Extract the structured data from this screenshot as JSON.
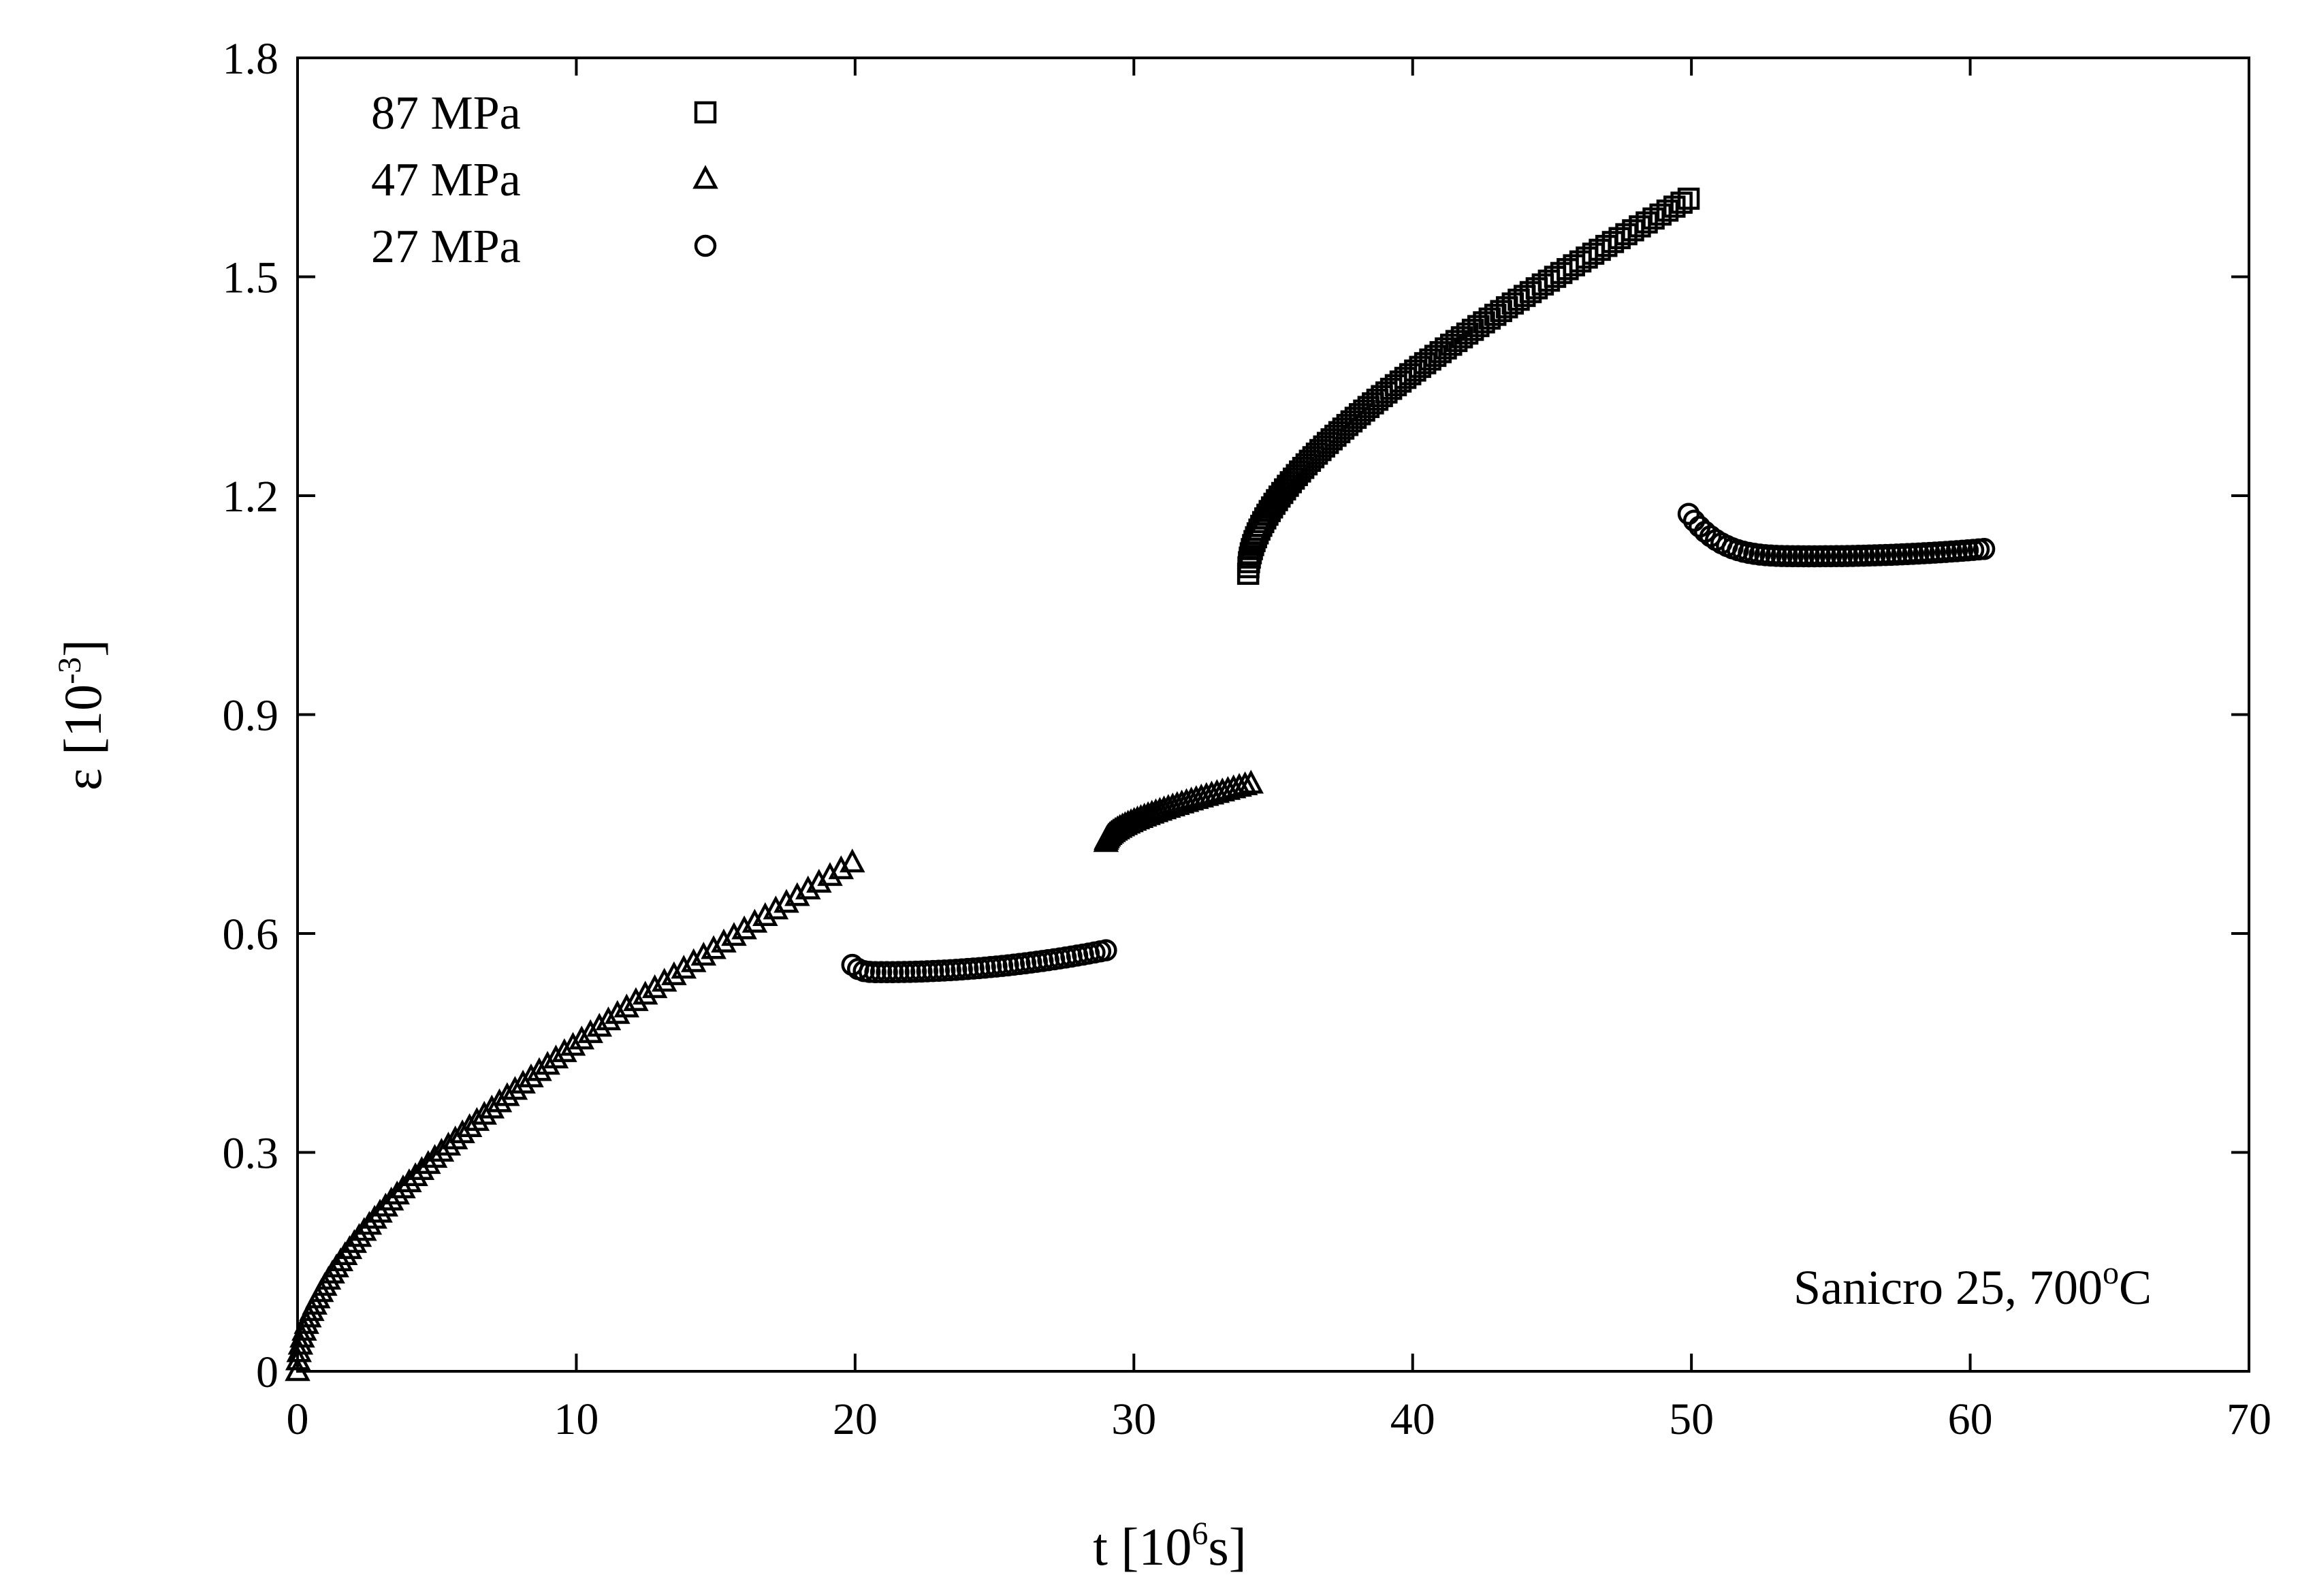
{
  "chart_data": {
    "type": "scatter",
    "xlabel": {
      "base": "t [10",
      "sup": "6",
      "tail": "s]"
    },
    "ylabel": {
      "base": "ε [10",
      "sup": "-3",
      "tail": "]"
    },
    "xlim": [
      0,
      70
    ],
    "ylim": [
      0,
      1.8
    ],
    "xticks": [
      0,
      10,
      20,
      30,
      40,
      50,
      60,
      70
    ],
    "xtick_labels": [
      "0",
      "10",
      "20",
      "30",
      "40",
      "50",
      "60",
      "70"
    ],
    "yticks": [
      0,
      0.3,
      0.6,
      0.9,
      1.2,
      1.5,
      1.8
    ],
    "ytick_labels": [
      "0",
      "0.3",
      "0.6",
      "0.9",
      "1.2",
      "1.5",
      "1.8"
    ],
    "grid": false,
    "legend_position": "top-left",
    "annotation": {
      "base": "Sanicro 25, 700",
      "sup": "o",
      "tail": "C",
      "position": "bottom-right"
    },
    "series": [
      {
        "name": "87 MPa",
        "marker": "square",
        "segments": [
          {
            "t_start": 34.1,
            "t_end": 49.9,
            "eps_start": 1.093,
            "eps_end": 1.607,
            "shape": "primary",
            "points": 100
          }
        ]
      },
      {
        "name": "47 MPa",
        "marker": "triangle",
        "segments": [
          {
            "t_start": 0.0,
            "t_end": 19.9,
            "eps_start": 0.0,
            "eps_end": 0.697,
            "shape": "primary",
            "points": 80
          },
          {
            "t_start": 29.0,
            "t_end": 34.2,
            "eps_start": 0.725,
            "eps_end": 0.805,
            "shape": "primary",
            "points": 40
          }
        ]
      },
      {
        "name": "27 MPa",
        "marker": "circle",
        "segments": [
          {
            "t_start": 19.9,
            "t_end": 29.0,
            "eps_start": 0.557,
            "eps_end": 0.577,
            "eps_min": 0.547,
            "t_min": 21.0,
            "shape": "dip",
            "points": 45
          },
          {
            "t_start": 49.9,
            "t_end": 60.5,
            "eps_start": 1.175,
            "eps_end": 1.127,
            "eps_min": 1.117,
            "t_min": 54.5,
            "shape": "dip",
            "points": 55
          }
        ]
      }
    ]
  }
}
